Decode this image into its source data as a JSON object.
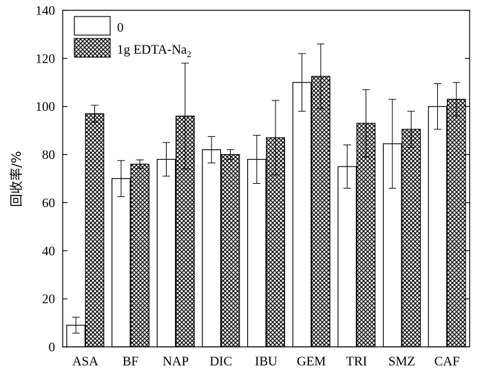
{
  "chart_data": {
    "type": "bar",
    "ylabel": "回收率/%",
    "ylim": [
      0,
      140
    ],
    "yticks": [
      0,
      20,
      40,
      60,
      80,
      100,
      120,
      140
    ],
    "categories": [
      "ASA",
      "BF",
      "NAP",
      "DIC",
      "IBU",
      "GEM",
      "TRI",
      "SMZ",
      "CAF"
    ],
    "series": [
      {
        "name": "0",
        "style": "white",
        "values": [
          9,
          70,
          78,
          82,
          78,
          110,
          75,
          84.5,
          100
        ],
        "errors": [
          3.3,
          7.5,
          7,
          5.5,
          10,
          12,
          9,
          18.5,
          9.5
        ]
      },
      {
        "name": "1g EDTA-Na",
        "name_subscript": "2",
        "style": "crosshatch",
        "values": [
          97,
          76,
          96,
          80,
          87,
          112.5,
          93,
          90.5,
          103
        ],
        "errors": [
          3.5,
          1.8,
          22,
          2,
          15.5,
          13.5,
          14,
          7.5,
          7
        ]
      }
    ],
    "legend": "top-left",
    "grid": false
  }
}
